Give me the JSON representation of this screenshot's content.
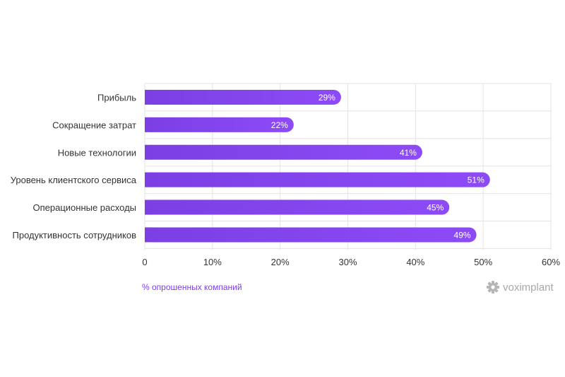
{
  "chart_data": {
    "type": "bar",
    "orientation": "horizontal",
    "categories": [
      "Прибыль",
      "Сокращение затрат",
      "Новые технологии",
      "Уровень клиентского сервиса",
      "Операционные расходы",
      "Продуктивность сотрудников"
    ],
    "values": [
      29,
      22,
      41,
      51,
      45,
      49
    ],
    "value_labels": [
      "29%",
      "22%",
      "41%",
      "51%",
      "45%",
      "49%"
    ],
    "xlim": [
      0,
      60
    ],
    "x_ticks": [
      0,
      10,
      20,
      30,
      40,
      50,
      60
    ],
    "x_tick_labels": [
      "0",
      "10%",
      "20%",
      "30%",
      "40%",
      "50%",
      "60%"
    ],
    "xlabel": "% опрошенных компаний",
    "grid": true,
    "bar_gradient": [
      "#7b3fe4",
      "#8d4bf7"
    ],
    "accent_color": "#7b3fe4"
  },
  "brand": {
    "logo_text": "voximplant",
    "logo_icon": "voximplant-gear-icon",
    "logo_color": "#a8a8a8"
  }
}
